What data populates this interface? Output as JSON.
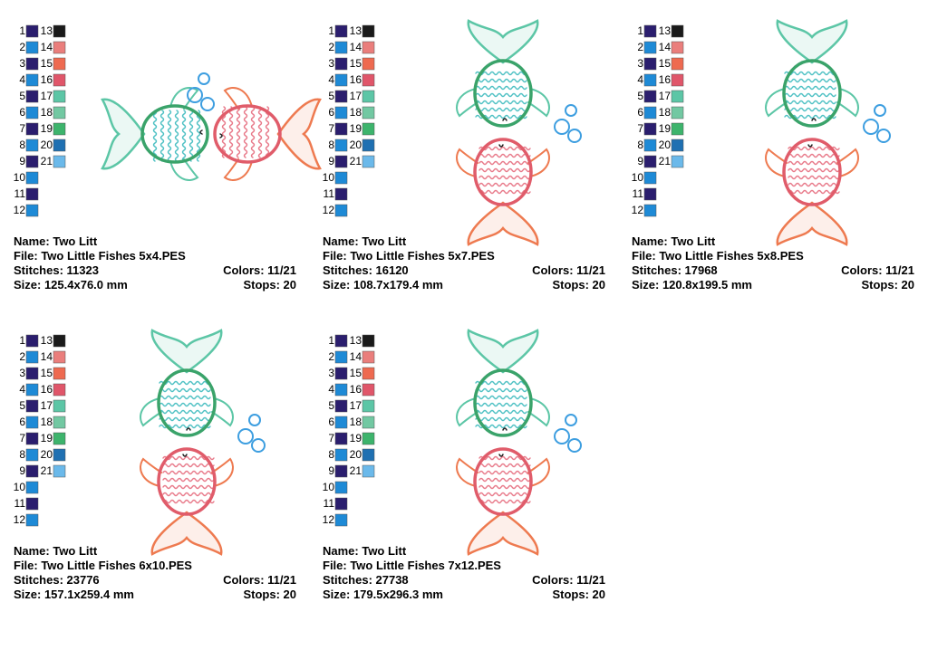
{
  "color_chart": {
    "numbers": [
      1,
      2,
      3,
      4,
      5,
      6,
      7,
      8,
      9,
      10,
      11,
      12,
      13,
      14,
      15,
      16,
      17,
      18,
      19,
      20,
      21
    ],
    "colors": [
      "#2b1e6e",
      "#1e8ad6",
      "#2b1e6e",
      "#1e8ad6",
      "#2b1e6e",
      "#1e8ad6",
      "#2b1e6e",
      "#1e8ad6",
      "#2b1e6e",
      "#1e8ad6",
      "#2b1e6e",
      "#1e8ad6",
      "#1a1a1a",
      "#ea7e7c",
      "#ee6a50",
      "#e0566a",
      "#5cc6a6",
      "#72c8a2",
      "#3db46c",
      "#1f70b2",
      "#6bb9ea"
    ]
  },
  "designs": [
    {
      "name": "Name: Two Litt",
      "file": "File: Two Little Fishes 5x4.PES",
      "stitches": "Stitches: 11323",
      "colors": "Colors: 11/21",
      "size": "Size: 125.4x76.0 mm",
      "stops": "Stops: 20"
    },
    {
      "name": "Name: Two Litt",
      "file": "File: Two Little Fishes 5x7.PES",
      "stitches": "Stitches: 16120",
      "colors": "Colors: 11/21",
      "size": "Size: 108.7x179.4 mm",
      "stops": "Stops: 20"
    },
    {
      "name": "Name: Two Litt",
      "file": "File: Two Little Fishes 5x8.PES",
      "stitches": "Stitches: 17968",
      "colors": "Colors: 11/21",
      "size": "Size: 120.8x199.5 mm",
      "stops": "Stops: 20"
    },
    {
      "name": "Name: Two Litt",
      "file": "File: Two Little Fishes 6x10.PES",
      "stitches": "Stitches: 23776",
      "colors": "Colors: 11/21",
      "size": "Size: 157.1x259.4 mm",
      "stops": "Stops: 20"
    },
    {
      "name": "Name: Two Litt",
      "file": "File: Two Little Fishes 7x12.PES",
      "stitches": "Stitches: 27738",
      "colors": "Colors: 11/21",
      "size": "Size: 179.5x296.3 mm",
      "stops": "Stops: 20"
    }
  ]
}
